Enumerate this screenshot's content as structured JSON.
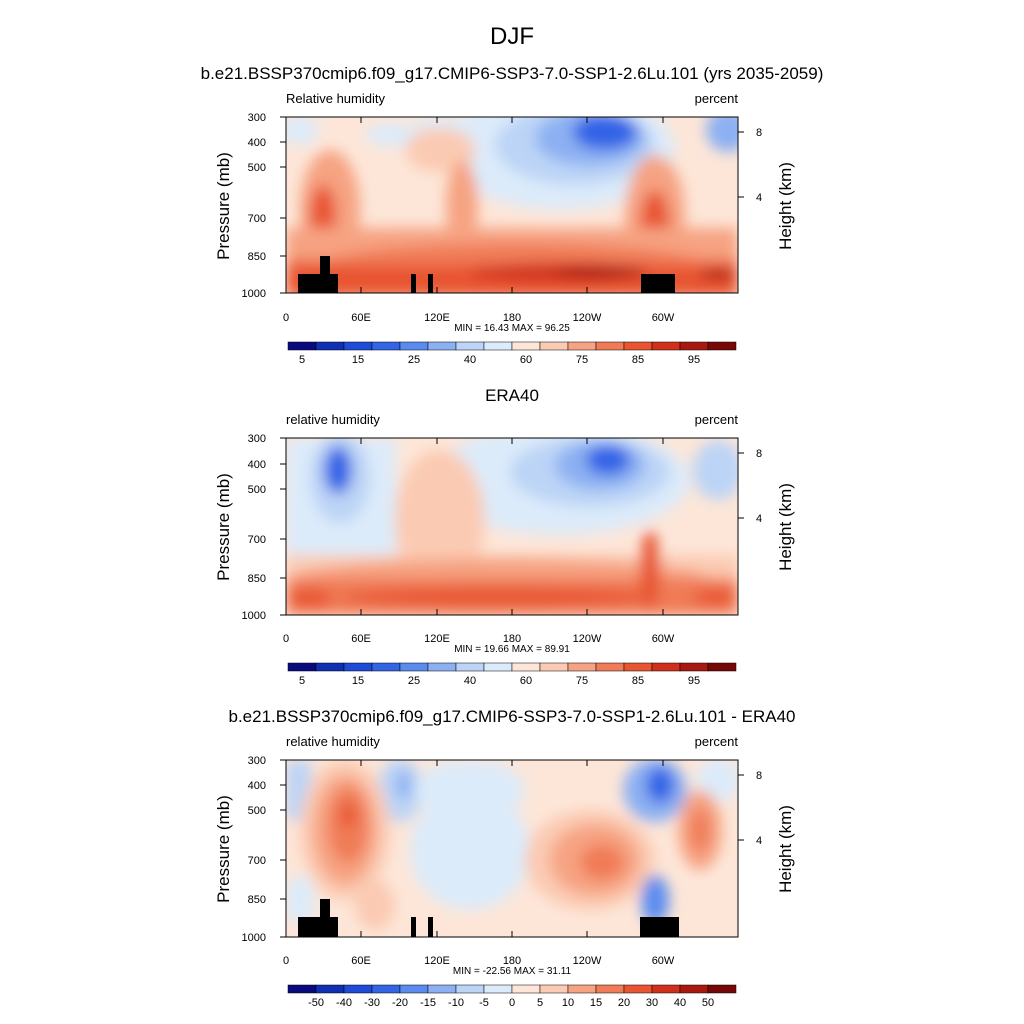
{
  "figure": {
    "title": "DJF"
  },
  "colors": {
    "model_obs_bar": [
      "#0a0a80",
      "#1030b4",
      "#1e4bd8",
      "#3264e6",
      "#5a8cef",
      "#8cb0f2",
      "#bcd4f6",
      "#dcebfa",
      "#fde6d8",
      "#fbcab2",
      "#f6a382",
      "#f07b56",
      "#e85530",
      "#d0301c",
      "#a81810",
      "#780808"
    ],
    "diff_bar": [
      "#0a0a80",
      "#1030b4",
      "#1e4bd8",
      "#3264e6",
      "#5a8cef",
      "#8cb0f2",
      "#bcd4f6",
      "#dcebfa",
      "#fde6d8",
      "#fbcab2",
      "#f6a382",
      "#f07b56",
      "#e85530",
      "#d0301c",
      "#a81810",
      "#780808"
    ]
  },
  "chart_data": [
    {
      "type": "heatmap",
      "title": "b.e21.BSSP370cmip6.f09_g17.CMIP6-SSP3-7.0-SSP1-2.6Lu.101 (yrs 2035-2059)",
      "variable_label": "Relative humidity",
      "units_label": "percent",
      "ylabel": "Pressure (mb)",
      "ylabel_right": "Height (km)",
      "x_ticks": [
        "0",
        "60E",
        "120E",
        "180",
        "120W",
        "60W"
      ],
      "y_ticks": [
        "300",
        "400",
        "500",
        "700",
        "850",
        "1000"
      ],
      "y_right_ticks": [
        "8",
        "4"
      ],
      "stats": "MIN = 16.43  MAX = 96.25",
      "colorbar_labels": [
        "5",
        "15",
        "25",
        "40",
        "60",
        "75",
        "85",
        "95"
      ],
      "colorbar_levels": [
        5,
        10,
        15,
        20,
        25,
        30,
        40,
        50,
        60,
        65,
        75,
        80,
        85,
        90,
        95
      ],
      "x_range": [
        0,
        360
      ],
      "y_range": [
        1000,
        300
      ],
      "y_scale": "log"
    },
    {
      "type": "heatmap",
      "title": "ERA40",
      "variable_label": "relative humidity",
      "units_label": "percent",
      "ylabel": "Pressure (mb)",
      "ylabel_right": "Height (km)",
      "x_ticks": [
        "0",
        "60E",
        "120E",
        "180",
        "120W",
        "60W"
      ],
      "y_ticks": [
        "300",
        "400",
        "500",
        "700",
        "850",
        "1000"
      ],
      "y_right_ticks": [
        "8",
        "4"
      ],
      "stats": "MIN = 19.66  MAX = 89.91",
      "colorbar_labels": [
        "5",
        "15",
        "25",
        "40",
        "60",
        "75",
        "85",
        "95"
      ],
      "colorbar_levels": [
        5,
        10,
        15,
        20,
        25,
        30,
        40,
        50,
        60,
        65,
        75,
        80,
        85,
        90,
        95
      ],
      "x_range": [
        0,
        360
      ],
      "y_range": [
        1000,
        300
      ],
      "y_scale": "log"
    },
    {
      "type": "heatmap",
      "title": "b.e21.BSSP370cmip6.f09_g17.CMIP6-SSP3-7.0-SSP1-2.6Lu.101 - ERA40",
      "variable_label": "relative humidity",
      "units_label": "percent",
      "ylabel": "Pressure (mb)",
      "ylabel_right": "Height (km)",
      "x_ticks": [
        "0",
        "60E",
        "120E",
        "180",
        "120W",
        "60W"
      ],
      "y_ticks": [
        "300",
        "400",
        "500",
        "700",
        "850",
        "1000"
      ],
      "y_right_ticks": [
        "8",
        "4"
      ],
      "stats": "MIN = -22.56  MAX = 31.11",
      "colorbar_labels": [
        "-50",
        "-40",
        "-30",
        "-20",
        "-15",
        "-10",
        "-5",
        "0",
        "5",
        "10",
        "15",
        "20",
        "30",
        "40",
        "50"
      ],
      "colorbar_levels": [
        -50,
        -40,
        -30,
        -20,
        -15,
        -10,
        -5,
        0,
        5,
        10,
        15,
        20,
        30,
        40,
        50
      ],
      "x_range": [
        0,
        360
      ],
      "y_range": [
        1000,
        300
      ],
      "y_scale": "log"
    }
  ]
}
